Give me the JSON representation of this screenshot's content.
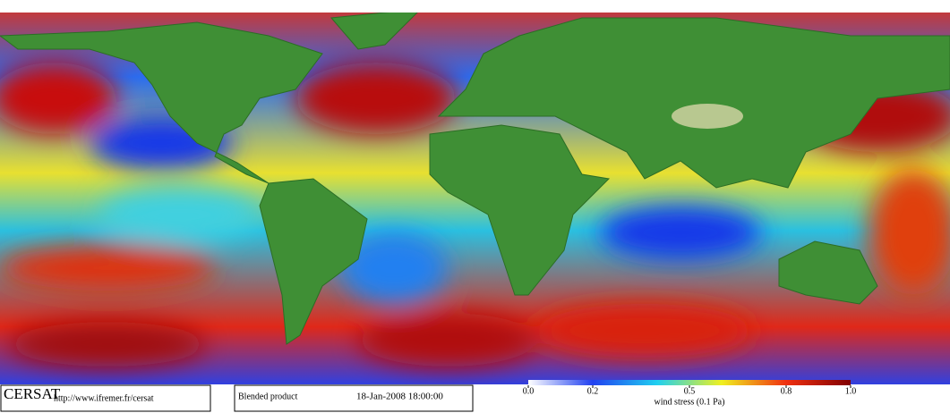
{
  "footer": {
    "logo": "CERSAT",
    "url": "http://www.ifremer.fr/cersat",
    "product": "Blended product",
    "date": "18-Jan-2008 18:00:00"
  },
  "colorbar": {
    "label": "wind stress (0.1 Pa)",
    "lim": [
      0,
      1
    ],
    "ticks": [
      {
        "value": 0,
        "label": "0.0"
      },
      0.2,
      0.5,
      0.8,
      {
        "value": 1,
        "label": "1.0"
      }
    ]
  }
}
